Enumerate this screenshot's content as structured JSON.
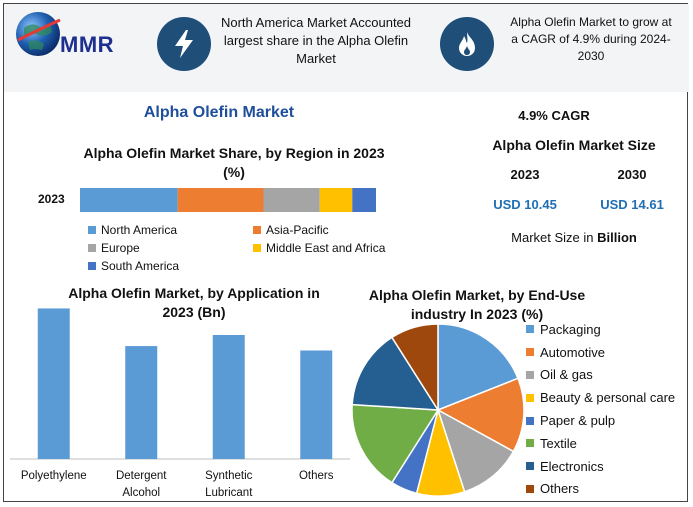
{
  "brand": {
    "logo_text": "MMR",
    "colors": {
      "primary": "#1f4e79",
      "accent": "#1f4e9a",
      "value_blue": "#1f6fb5"
    }
  },
  "header": {
    "icon1": "lightning-icon",
    "text1": "North America Market Accounted largest share in the Alpha Olefin Market",
    "icon2": "flame-icon",
    "text2": "Alpha Olefin Market to grow at a CAGR of 4.9% during 2024-2030"
  },
  "main_title": "Alpha Olefin Market",
  "stats": {
    "cagr": "4.9% CAGR",
    "size_title": "Alpha Olefin Market Size",
    "year1": "2023",
    "year2": "2030",
    "value1": "USD 10.45",
    "value2": "USD 14.61",
    "note_prefix": "Market Size in ",
    "note_bold": "Billion"
  },
  "chart_data": [
    {
      "type": "bar",
      "orientation": "horizontal-stacked",
      "title": "Alpha Olefin Market Share, by Region in 2023 (%)",
      "categories": [
        "2023"
      ],
      "series": [
        {
          "name": "North America",
          "values": [
            33
          ],
          "color": "#5b9bd5"
        },
        {
          "name": "Asia-Pacific",
          "values": [
            29
          ],
          "color": "#ed7d31"
        },
        {
          "name": "Europe",
          "values": [
            19
          ],
          "color": "#a5a5a5"
        },
        {
          "name": "Middle East and Africa",
          "values": [
            11
          ],
          "color": "#ffc000"
        },
        {
          "name": "South America",
          "values": [
            8
          ],
          "color": "#4472c4"
        }
      ],
      "legend": "bottom"
    },
    {
      "type": "bar",
      "title": "Alpha Olefin Market, by Application in 2023 (Bn)",
      "categories": [
        "Polyethylene",
        "Detergent Alcohol",
        "Synthetic Lubricant",
        "Others"
      ],
      "values": [
        3.4,
        2.55,
        2.8,
        2.45
      ],
      "ylim": [
        0,
        3.5
      ],
      "color": "#5b9bd5",
      "grid": false
    },
    {
      "type": "pie",
      "title": "Alpha Olefin Market, by End-Use industry In 2023 (%)",
      "labels": [
        "Packaging",
        "Automotive",
        "Oil & gas",
        "Beauty & personal care",
        "Paper & pulp",
        "Textile",
        "Electronics",
        "Others"
      ],
      "values": [
        19,
        14,
        12,
        9,
        5,
        17,
        15,
        9
      ],
      "colors": [
        "#5b9bd5",
        "#ed7d31",
        "#a5a5a5",
        "#ffc000",
        "#4472c4",
        "#70ad47",
        "#255e91",
        "#9e480e"
      ],
      "legend": "right"
    }
  ]
}
